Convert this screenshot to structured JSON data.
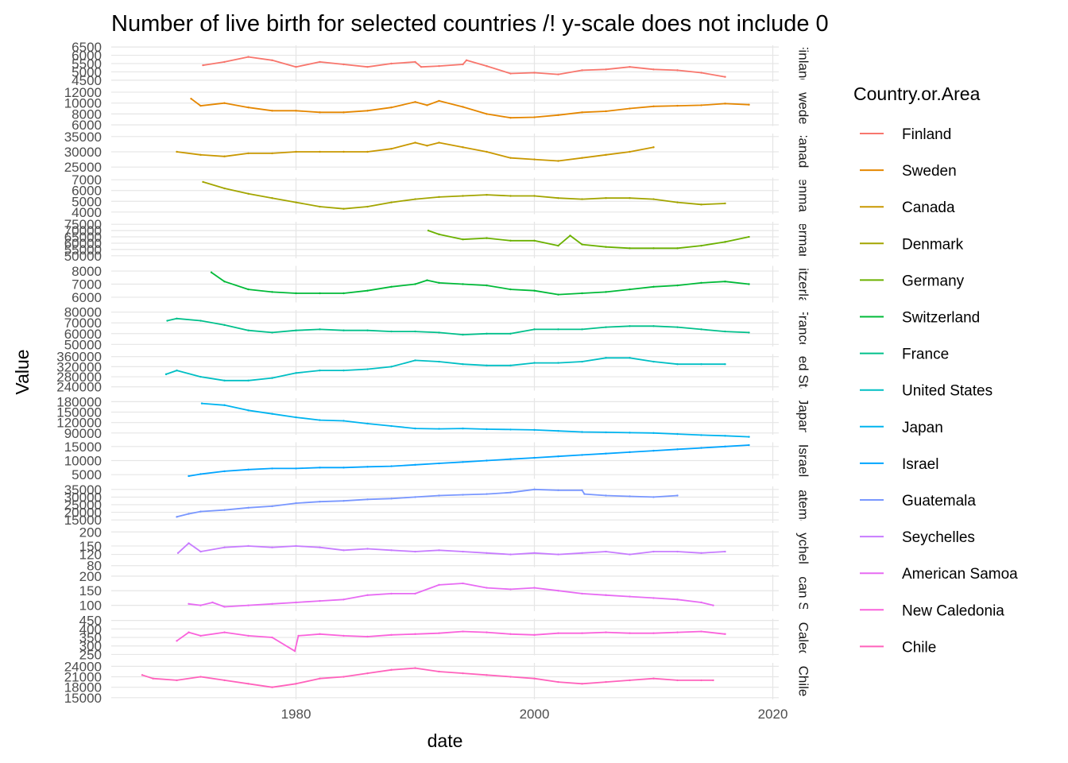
{
  "chart_data": {
    "type": "line",
    "title": "Number of live birth for selected countries /! y-scale does not include 0",
    "xlabel": "date",
    "ylabel": "Value",
    "x_ticks": [
      "1980",
      "2000",
      "2020"
    ],
    "x_range": [
      1964.5,
      2020.5
    ],
    "grid": true,
    "legend": {
      "title": "Country.or.Area",
      "position": "right",
      "items": [
        "Finland",
        "Sweden",
        "Canada",
        "Denmark",
        "Germany",
        "Switzerland",
        "France",
        "United States",
        "Japan",
        "Israel",
        "Guatemala",
        "Seychelles",
        "American Samoa",
        "New Caledonia",
        "Chile"
      ]
    },
    "facets": [
      {
        "name": "Finland",
        "strip": "Finland",
        "color": "#F8766D",
        "ylim": [
          4400,
          6600
        ],
        "y_ticks": [
          "6500",
          "6000",
          "5500",
          "5000",
          "4500"
        ],
        "x": [
          1972.2,
          1974,
          1976,
          1978,
          1980,
          1982,
          1984,
          1986,
          1988,
          1990,
          1990.5,
          1992,
          1994,
          1994.3,
          1996,
          1998,
          2000,
          2002,
          2004,
          2006,
          2008,
          2010,
          2012,
          2014,
          2016
        ],
        "values": [
          5400,
          5600,
          5900,
          5700,
          5300,
          5600,
          5450,
          5300,
          5500,
          5600,
          5300,
          5350,
          5450,
          5700,
          5350,
          4900,
          4950,
          4850,
          5100,
          5150,
          5300,
          5150,
          5100,
          4950,
          4700
        ]
      },
      {
        "name": "Sweden",
        "strip": "Sweden",
        "color": "#E58700",
        "ylim": [
          5800,
          12500
        ],
        "y_ticks": [
          "12000",
          "10000",
          "8000",
          "6000"
        ],
        "x": [
          1971.2,
          1972,
          1974,
          1976,
          1978,
          1980,
          1982,
          1984,
          1986,
          1988,
          1990,
          1991,
          1992,
          1994,
          1996,
          1998,
          2000,
          2002,
          2004,
          2006,
          2008,
          2010,
          2012,
          2014,
          2016,
          2018
        ],
        "values": [
          10800,
          9500,
          10000,
          9200,
          8600,
          8600,
          8300,
          8300,
          8600,
          9200,
          10200,
          9600,
          10400,
          9300,
          8000,
          7300,
          7400,
          7800,
          8300,
          8500,
          9000,
          9400,
          9500,
          9600,
          9900,
          9700
        ],
        "label": "Sweden"
      },
      {
        "name": "Canada",
        "strip": "Canada",
        "color": "#C99800",
        "ylim": [
          24000,
          36000
        ],
        "y_ticks": [
          "35000",
          "30000",
          "25000"
        ],
        "x": [
          1970,
          1972,
          1974,
          1976,
          1978,
          1980,
          1982,
          1984,
          1986,
          1988,
          1990,
          1991,
          1992,
          1994,
          1996,
          1998,
          2000,
          2002,
          2004,
          2006,
          2008,
          2010
        ],
        "values": [
          30000,
          29000,
          28500,
          29500,
          29500,
          30000,
          30000,
          30000,
          30000,
          31000,
          33000,
          32000,
          33000,
          31500,
          30000,
          28000,
          27500,
          27000,
          28000,
          29000,
          30000,
          31500
        ]
      },
      {
        "name": "Denmark",
        "strip": "Denmark",
        "color": "#A3A500",
        "ylim": [
          3800,
          7200
        ],
        "y_ticks": [
          "7000",
          "6000",
          "5000",
          "4000"
        ],
        "x": [
          1972.2,
          1974,
          1976,
          1978,
          1980,
          1982,
          1984,
          1986,
          1988,
          1990,
          1992,
          1994,
          1996,
          1998,
          2000,
          2002,
          2004,
          2006,
          2008,
          2010,
          2012,
          2014,
          2016
        ],
        "values": [
          6800,
          6200,
          5700,
          5300,
          4900,
          4500,
          4300,
          4500,
          4900,
          5200,
          5400,
          5500,
          5600,
          5500,
          5500,
          5300,
          5200,
          5300,
          5300,
          5200,
          4900,
          4700,
          4800
        ]
      },
      {
        "name": "Germany",
        "strip": "Germany",
        "color": "#6BB100",
        "ylim": [
          48000,
          77000
        ],
        "y_ticks": [
          "75000",
          "70000",
          "65000",
          "60000",
          "55000",
          "50000"
        ],
        "x": [
          1991.1,
          1992,
          1994,
          1996,
          1998,
          2000,
          2002,
          2003,
          2004,
          2006,
          2008,
          2010,
          2012,
          2014,
          2016,
          2018
        ],
        "values": [
          70000,
          67000,
          63000,
          64000,
          62000,
          62000,
          58000,
          66000,
          59000,
          57000,
          56000,
          56000,
          56000,
          58000,
          61000,
          65000
        ]
      },
      {
        "name": "Switzerland",
        "strip": "Switzerland",
        "color": "#00BA38",
        "ylim": [
          5600,
          8400
        ],
        "y_ticks": [
          "8000",
          "7000",
          "6000"
        ],
        "x": [
          1972.9,
          1974,
          1976,
          1978,
          1980,
          1982,
          1984,
          1986,
          1988,
          1990,
          1991,
          1992,
          1994,
          1996,
          1998,
          2000,
          2002,
          2004,
          2006,
          2008,
          2010,
          2012,
          2014,
          2016,
          2018
        ],
        "values": [
          7900,
          7200,
          6600,
          6400,
          6300,
          6300,
          6300,
          6500,
          6800,
          7000,
          7300,
          7100,
          7000,
          6900,
          6600,
          6500,
          6200,
          6300,
          6400,
          6600,
          6800,
          6900,
          7100,
          7200,
          7000
        ]
      },
      {
        "name": "France",
        "strip": "France",
        "color": "#00C08B",
        "ylim": [
          48000,
          82000
        ],
        "y_ticks": [
          "80000",
          "70000",
          "60000",
          "50000"
        ],
        "x": [
          1969.2,
          1970,
          1972,
          1974,
          1976,
          1978,
          1980,
          1982,
          1984,
          1986,
          1988,
          1990,
          1992,
          1994,
          1996,
          1998,
          2000,
          2002,
          2004,
          2006,
          2008,
          2010,
          2012,
          2014,
          2016,
          2018
        ],
        "values": [
          72000,
          74000,
          72000,
          68000,
          63000,
          61000,
          63000,
          64000,
          63000,
          63000,
          62000,
          62000,
          61000,
          59000,
          60000,
          60000,
          64000,
          64000,
          64000,
          66000,
          67000,
          67000,
          66000,
          64000,
          62000,
          61000
        ]
      },
      {
        "name": "United States",
        "strip": "United States",
        "color": "#00BFC4",
        "ylim": [
          225000,
          370000
        ],
        "y_ticks": [
          "360000",
          "320000",
          "280000",
          "240000"
        ],
        "x": [
          1969.1,
          1970,
          1972,
          1974,
          1976,
          1978,
          1980,
          1982,
          1984,
          1986,
          1988,
          1990,
          1992,
          1994,
          1996,
          1998,
          2000,
          2002,
          2004,
          2006,
          2008,
          2010,
          2012,
          2014,
          2016
        ],
        "values": [
          290000,
          305000,
          280000,
          265000,
          265000,
          275000,
          295000,
          305000,
          305000,
          310000,
          320000,
          345000,
          340000,
          330000,
          325000,
          325000,
          335000,
          335000,
          340000,
          355000,
          355000,
          340000,
          330000,
          330000,
          330000
        ]
      },
      {
        "name": "Japan",
        "strip": "Japan",
        "color": "#00B4EF",
        "ylim": [
          85000,
          190000
        ],
        "y_ticks": [
          "180000",
          "150000",
          "120000",
          "90000"
        ],
        "x": [
          1972.1,
          1974,
          1976,
          1978,
          1980,
          1982,
          1984,
          1986,
          1988,
          1990,
          1992,
          1994,
          1996,
          1998,
          2000,
          2002,
          2004,
          2006,
          2008,
          2010,
          2012,
          2014,
          2016,
          2018
        ],
        "values": [
          175000,
          170000,
          155000,
          145000,
          135000,
          127000,
          125000,
          117000,
          110000,
          103000,
          102000,
          103000,
          101000,
          100000,
          99000,
          96000,
          93000,
          92000,
          91000,
          90000,
          87000,
          84000,
          82000,
          79000
        ]
      },
      {
        "name": "Israel",
        "strip": "Israel",
        "color": "#00A5FF",
        "ylim": [
          3500,
          16500
        ],
        "y_ticks": [
          "15000",
          "10000",
          "5000"
        ],
        "x": [
          1971,
          1972,
          1974,
          1976,
          1978,
          1980,
          1982,
          1984,
          1986,
          1988,
          1990,
          1992,
          1994,
          1996,
          1998,
          2000,
          2002,
          2004,
          2006,
          2008,
          2010,
          2012,
          2014,
          2016,
          2018
        ],
        "values": [
          4500,
          5200,
          6200,
          6800,
          7200,
          7200,
          7500,
          7500,
          7800,
          8000,
          8500,
          9000,
          9500,
          10000,
          10500,
          11000,
          11500,
          12000,
          12500,
          13000,
          13500,
          14000,
          14500,
          15000,
          15500
        ]
      },
      {
        "name": "Guatemala",
        "strip": "Guatemala",
        "color": "#7997FF",
        "ylim": [
          13000,
          37000
        ],
        "y_ticks": [
          "35000",
          "30000",
          "25000",
          "20000",
          "15000"
        ],
        "x": [
          1970,
          1971,
          1972,
          1974,
          1976,
          1978,
          1980,
          1982,
          1984,
          1986,
          1988,
          1990,
          1992,
          1994,
          1996,
          1998,
          2000,
          2002,
          2004,
          2004.2,
          2006,
          2008,
          2010,
          2012
        ],
        "values": [
          17000,
          19000,
          20500,
          21500,
          23000,
          24000,
          26000,
          27000,
          27500,
          28500,
          29000,
          30000,
          31000,
          31500,
          32000,
          33000,
          35000,
          34500,
          34500,
          32000,
          31000,
          30500,
          30000,
          31000
        ]
      },
      {
        "name": "Seychelles",
        "strip": "Seychelles",
        "color": "#C77CFF",
        "ylim": [
          75,
          205
        ],
        "y_ticks": [
          "200",
          "150",
          "120",
          "80"
        ],
        "x": [
          1970.1,
          1971,
          1972,
          1974,
          1976,
          1978,
          1980,
          1982,
          1984,
          1986,
          1988,
          1990,
          1992,
          1994,
          1996,
          1998,
          2000,
          2002,
          2004,
          2006,
          2008,
          2010,
          2012,
          2014,
          2016
        ],
        "values": [
          125,
          160,
          130,
          145,
          150,
          145,
          150,
          145,
          135,
          140,
          135,
          130,
          135,
          130,
          125,
          120,
          125,
          120,
          125,
          130,
          120,
          130,
          130,
          125,
          130
        ]
      },
      {
        "name": "American Samoa",
        "strip": "American Samoa",
        "color": "#E76BF3",
        "ylim": [
          80,
          205
        ],
        "y_ticks": [
          "200",
          "150",
          "100"
        ],
        "x": [
          1971,
          1972,
          1973,
          1974,
          1976,
          1978,
          1980,
          1982,
          1984,
          1986,
          1988,
          1990,
          1992,
          1994,
          1996,
          1998,
          2000,
          2002,
          2004,
          2006,
          2008,
          2010,
          2012,
          2014,
          2015
        ],
        "values": [
          105,
          100,
          110,
          95,
          100,
          105,
          110,
          115,
          120,
          135,
          140,
          140,
          170,
          175,
          160,
          155,
          160,
          150,
          140,
          135,
          130,
          125,
          120,
          110,
          100
        ]
      },
      {
        "name": "New Caledonia",
        "strip": "New Caledonia",
        "color": "#FA62DB",
        "ylim": [
          245,
          460
        ],
        "y_ticks": [
          "450",
          "400",
          "350",
          "300",
          "250"
        ],
        "x": [
          1970,
          1971,
          1972,
          1974,
          1976,
          1978,
          1979.9,
          1980.2,
          1982,
          1984,
          1986,
          1988,
          1990,
          1992,
          1994,
          1996,
          1998,
          2000,
          2002,
          2004,
          2006,
          2008,
          2010,
          2012,
          2014,
          2016
        ],
        "values": [
          330,
          380,
          360,
          380,
          360,
          350,
          270,
          360,
          370,
          360,
          355,
          365,
          370,
          375,
          385,
          380,
          370,
          365,
          375,
          375,
          380,
          375,
          375,
          380,
          385,
          370
        ]
      },
      {
        "name": "Chile",
        "strip": "Chile",
        "color": "#FF62BC",
        "ylim": [
          14500,
          25000
        ],
        "y_ticks": [
          "24000",
          "21000",
          "18000",
          "15000"
        ],
        "x": [
          1967.1,
          1968,
          1970,
          1972,
          1974,
          1976,
          1978,
          1980,
          1982,
          1984,
          1986,
          1988,
          1990,
          1992,
          1994,
          1996,
          1998,
          2000,
          2002,
          2004,
          2006,
          2008,
          2010,
          2012,
          2014,
          2015
        ],
        "values": [
          21500,
          20500,
          20000,
          21000,
          20000,
          19000,
          18000,
          19000,
          20500,
          21000,
          22000,
          23000,
          23500,
          22500,
          22000,
          21500,
          21000,
          20500,
          19500,
          19000,
          19500,
          20000,
          20500,
          20000,
          20000,
          20000
        ]
      }
    ]
  }
}
